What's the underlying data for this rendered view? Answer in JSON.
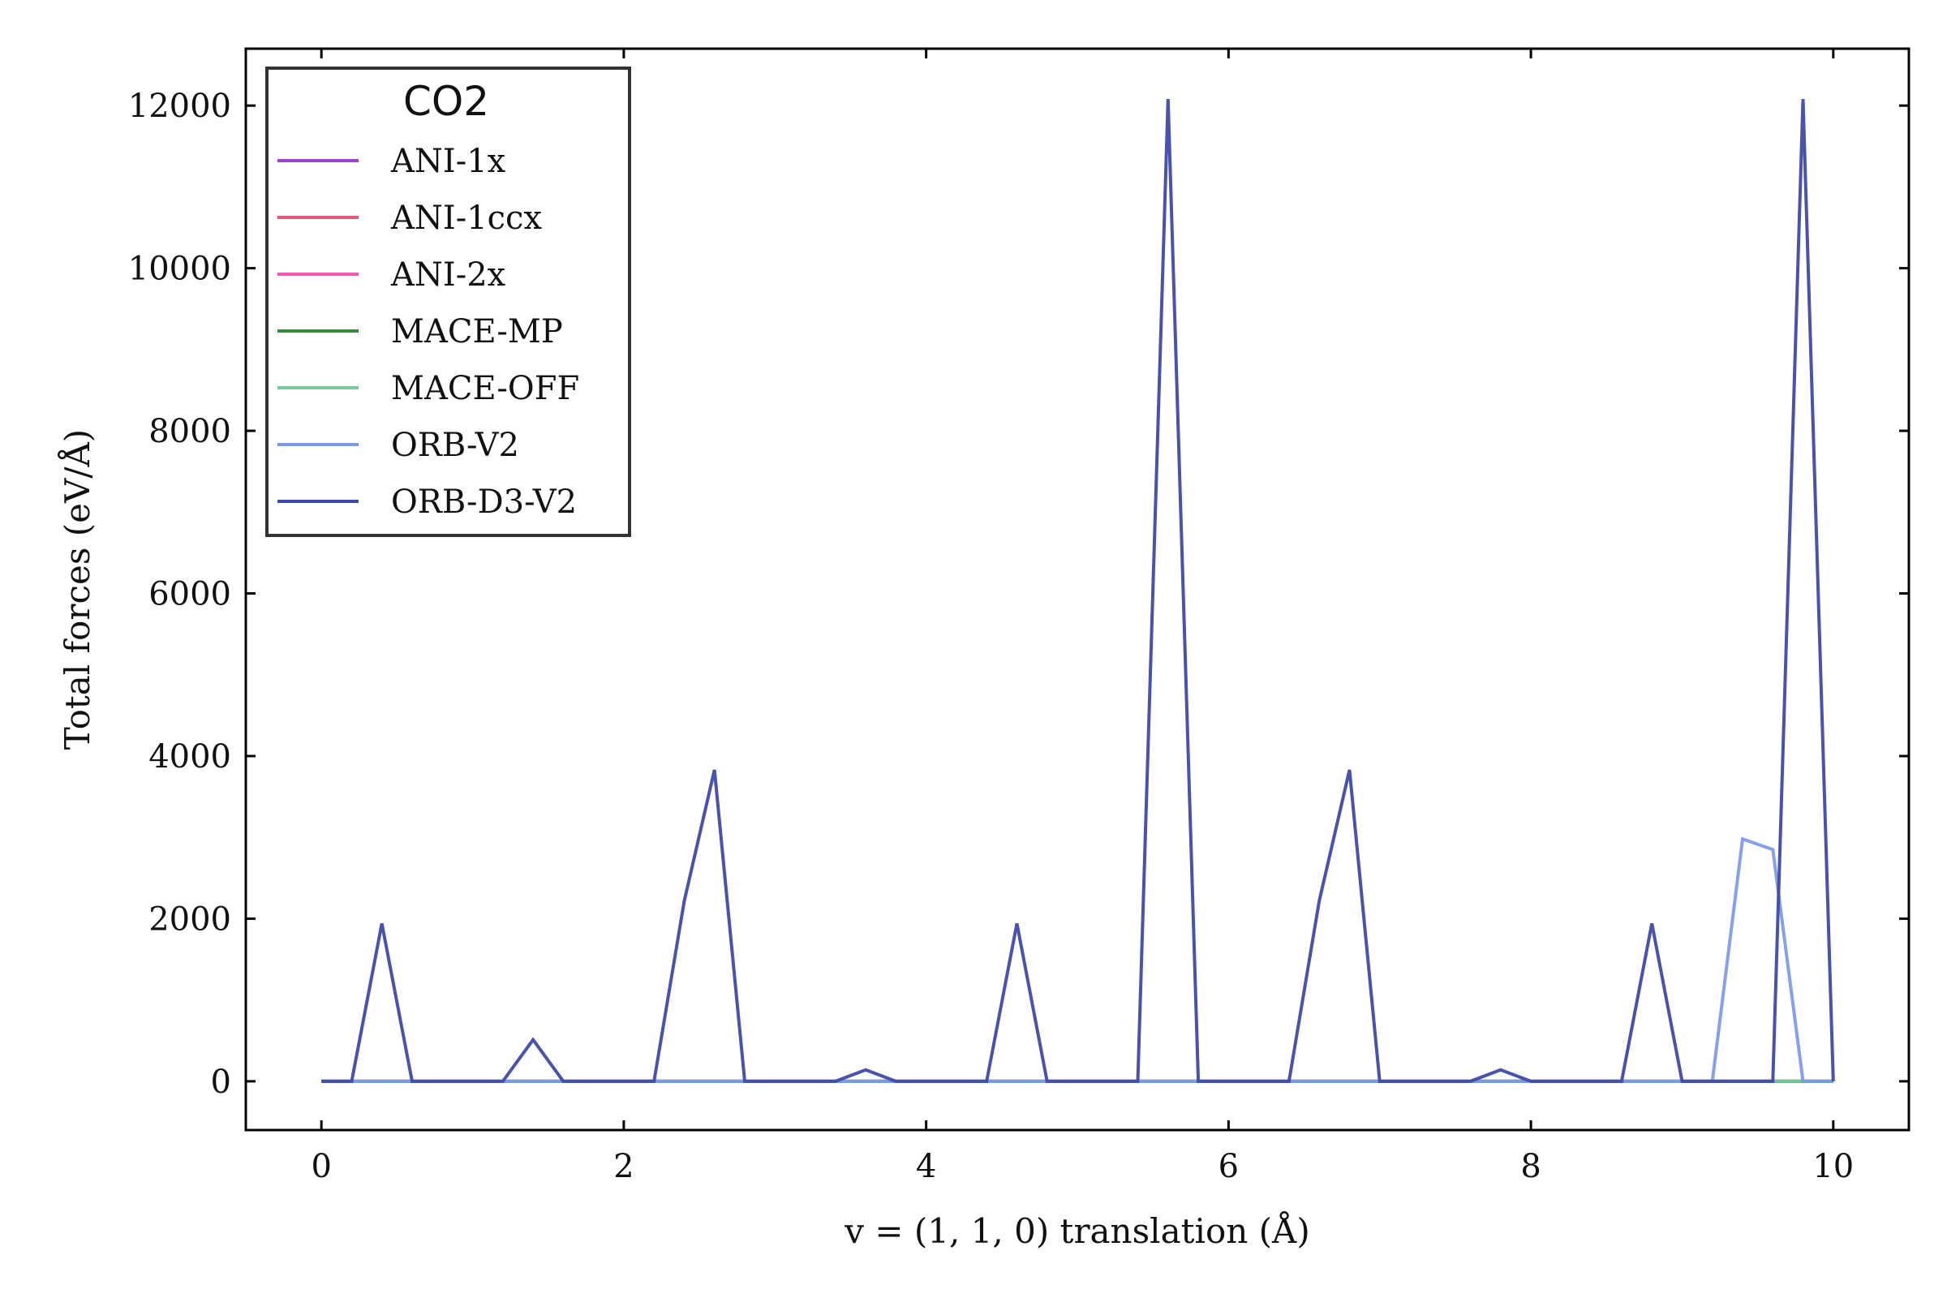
{
  "chart_data": {
    "type": "line",
    "xlabel": "v = (1, 1, 0)    translation (Å)",
    "ylabel": "Total forces   (eV/Å)",
    "xlim": [
      -0.5,
      10.5
    ],
    "ylim": [
      -600,
      12700
    ],
    "xticks": [
      0,
      2,
      4,
      6,
      8,
      10
    ],
    "yticks": [
      0,
      2000,
      4000,
      6000,
      8000,
      10000,
      12000
    ],
    "grid": false,
    "legend": {
      "title": "CO2",
      "placement": "top-left"
    },
    "x": [
      0.0,
      0.2,
      0.4,
      0.6,
      0.8,
      1.0,
      1.2,
      1.4,
      1.6,
      1.8,
      2.0,
      2.2,
      2.4,
      2.6,
      2.8,
      3.0,
      3.2,
      3.4,
      3.6,
      3.8,
      4.0,
      4.2,
      4.4,
      4.6,
      4.8,
      5.0,
      5.2,
      5.4,
      5.6,
      5.8,
      6.0,
      6.2,
      6.4,
      6.6,
      6.8,
      7.0,
      7.2,
      7.4,
      7.6,
      7.8,
      8.0,
      8.2,
      8.4,
      8.6,
      8.8,
      9.0,
      9.2,
      9.4,
      9.6,
      9.8,
      10.0
    ],
    "series": [
      {
        "name": "ANI-1x",
        "color": "#a040d8",
        "values": [
          0,
          0,
          0,
          0,
          0,
          0,
          0,
          0,
          0,
          0,
          0,
          0,
          0,
          0,
          0,
          0,
          0,
          0,
          0,
          0,
          0,
          0,
          0,
          0,
          0,
          0,
          0,
          0,
          0,
          0,
          0,
          0,
          0,
          0,
          0,
          0,
          0,
          0,
          0,
          0,
          0,
          0,
          0,
          0,
          0,
          0,
          0,
          0,
          0,
          0,
          0
        ]
      },
      {
        "name": "ANI-1ccx",
        "color": "#e05a78",
        "values": [
          0,
          0,
          0,
          0,
          0,
          0,
          0,
          0,
          0,
          0,
          0,
          0,
          0,
          0,
          0,
          0,
          0,
          0,
          0,
          0,
          0,
          0,
          0,
          0,
          0,
          0,
          0,
          0,
          0,
          0,
          0,
          0,
          0,
          0,
          0,
          0,
          0,
          0,
          0,
          0,
          0,
          0,
          0,
          0,
          0,
          0,
          0,
          0,
          0,
          0,
          0
        ]
      },
      {
        "name": "ANI-2x",
        "color": "#ee5cb0",
        "values": [
          0,
          0,
          0,
          0,
          0,
          0,
          0,
          0,
          0,
          0,
          0,
          0,
          0,
          0,
          0,
          0,
          0,
          0,
          0,
          0,
          0,
          0,
          0,
          0,
          0,
          0,
          0,
          0,
          0,
          0,
          0,
          0,
          0,
          0,
          0,
          0,
          0,
          0,
          0,
          0,
          0,
          0,
          0,
          0,
          0,
          0,
          0,
          0,
          0,
          0,
          0
        ]
      },
      {
        "name": "MACE-MP",
        "color": "#3a8a3a",
        "values": [
          0,
          0,
          0,
          0,
          0,
          0,
          0,
          0,
          0,
          0,
          0,
          0,
          0,
          0,
          0,
          0,
          0,
          0,
          0,
          0,
          0,
          0,
          0,
          0,
          0,
          0,
          0,
          0,
          0,
          0,
          0,
          0,
          0,
          0,
          0,
          0,
          0,
          0,
          0,
          0,
          0,
          0,
          0,
          0,
          0,
          0,
          0,
          0,
          0,
          0,
          0
        ]
      },
      {
        "name": "MACE-OFF",
        "color": "#72cc9a",
        "values": [
          0,
          0,
          0,
          0,
          0,
          0,
          0,
          0,
          0,
          0,
          0,
          0,
          0,
          0,
          0,
          0,
          0,
          0,
          0,
          0,
          0,
          0,
          0,
          0,
          0,
          0,
          0,
          0,
          0,
          0,
          0,
          0,
          0,
          0,
          0,
          0,
          0,
          0,
          0,
          0,
          0,
          0,
          0,
          0,
          0,
          0,
          0,
          0,
          0,
          0,
          0
        ]
      },
      {
        "name": "ORB-V2",
        "color": "#7898e4",
        "values": [
          0,
          0,
          0,
          0,
          0,
          0,
          0,
          0,
          0,
          0,
          0,
          0,
          0,
          0,
          0,
          0,
          0,
          0,
          0,
          0,
          0,
          0,
          0,
          0,
          0,
          0,
          0,
          0,
          0,
          0,
          0,
          0,
          0,
          0,
          0,
          0,
          0,
          0,
          0,
          0,
          0,
          0,
          0,
          0,
          0,
          0,
          0,
          2980,
          2850,
          0,
          0
        ]
      },
      {
        "name": "ORB-D3-V2",
        "color": "#3f4aa8",
        "values": [
          0,
          0,
          1940,
          0,
          0,
          0,
          0,
          510,
          0,
          0,
          0,
          0,
          2220,
          3830,
          0,
          0,
          0,
          0,
          140,
          0,
          0,
          0,
          0,
          1940,
          0,
          0,
          0,
          0,
          12080,
          0,
          0,
          0,
          0,
          2220,
          3830,
          0,
          0,
          0,
          0,
          140,
          0,
          0,
          0,
          0,
          1940,
          0,
          0,
          0,
          0,
          12080,
          0
        ]
      }
    ]
  }
}
